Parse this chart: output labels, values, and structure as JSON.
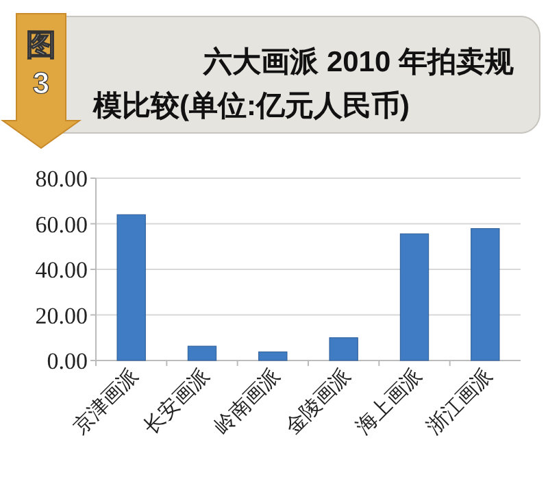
{
  "chart_data": {
    "type": "bar",
    "title": "六大画派 2010 年拍卖规模比较(单位:亿元人民币)",
    "annotations": [
      "图3"
    ],
    "categories": [
      "京津画派",
      "长安画派",
      "岭南画派",
      "金陵画派",
      "海上画派",
      "浙江画派"
    ],
    "values": [
      64,
      6.3,
      3.8,
      10,
      55.6,
      57.9
    ],
    "color": "#3f7cc4",
    "ylim": [
      0,
      80
    ],
    "yticks": [
      {
        "value": 0,
        "label": "0.00"
      },
      {
        "value": 20,
        "label": "20.00"
      },
      {
        "value": 40,
        "label": "40.00"
      },
      {
        "value": 60,
        "label": "60.00"
      },
      {
        "value": 80,
        "label": "80.00"
      }
    ],
    "grid": "y"
  }
}
